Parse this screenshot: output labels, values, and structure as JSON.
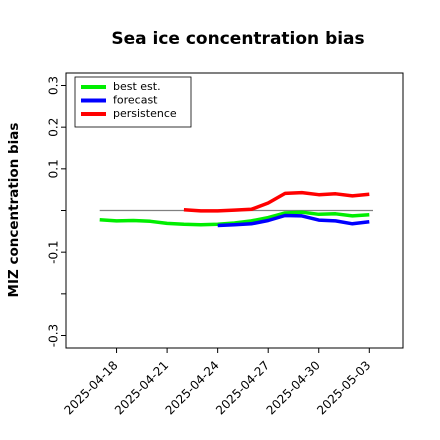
{
  "chart_data": {
    "type": "line",
    "title": "Sea ice concentration bias",
    "ylabel": "MIZ concentration bias",
    "xlabel": "",
    "ylim": [
      -0.33,
      0.33
    ],
    "yticks": [
      -0.3,
      -0.2,
      -0.1,
      0.0,
      0.1,
      0.2,
      0.3
    ],
    "ytick_labels": [
      "-0.3",
      "",
      "-0.1",
      "",
      "0.1",
      "0.2",
      "0.3"
    ],
    "xlim": [
      "2025-04-15",
      "2025-05-05"
    ],
    "xticks": [
      "2025-04-18",
      "2025-04-21",
      "2025-04-24",
      "2025-04-27",
      "2025-04-30",
      "2025-05-03"
    ],
    "xtick_labels": [
      "2025-04-18",
      "2025-04-21",
      "2025-04-24",
      "2025-04-27",
      "2025-04-30",
      "2025-05-03"
    ],
    "highlight_tick": "2025-04-24",
    "highlight_color": "#228b22",
    "zero_line": {
      "y": 0.0,
      "color": "#808080"
    },
    "grid": false,
    "legend_position": "top-left",
    "series": [
      {
        "name": "best est.",
        "color": "#00ee00",
        "x": [
          "2025-04-17",
          "2025-04-18",
          "2025-04-19",
          "2025-04-20",
          "2025-04-21",
          "2025-04-22",
          "2025-04-23",
          "2025-04-24",
          "2025-04-25",
          "2025-04-26",
          "2025-04-27",
          "2025-04-28",
          "2025-04-29",
          "2025-04-30",
          "2025-05-01",
          "2025-05-02",
          "2025-05-03"
        ],
        "y": [
          -0.022,
          -0.025,
          -0.024,
          -0.026,
          -0.031,
          -0.033,
          -0.034,
          -0.033,
          -0.03,
          -0.025,
          -0.017,
          -0.006,
          -0.004,
          -0.009,
          -0.008,
          -0.013,
          -0.01
        ]
      },
      {
        "name": "forecast",
        "color": "#0000ff",
        "x": [
          "2025-04-24",
          "2025-04-25",
          "2025-04-26",
          "2025-04-27",
          "2025-04-28",
          "2025-04-29",
          "2025-04-30",
          "2025-05-01",
          "2025-05-02",
          "2025-05-03"
        ],
        "y": [
          -0.036,
          -0.034,
          -0.032,
          -0.024,
          -0.012,
          -0.013,
          -0.023,
          -0.025,
          -0.032,
          -0.027
        ]
      },
      {
        "name": "persistence",
        "color": "#ff0000",
        "x": [
          "2025-04-22",
          "2025-04-23",
          "2025-04-24",
          "2025-04-25",
          "2025-04-26",
          "2025-04-27",
          "2025-04-28",
          "2025-04-29",
          "2025-04-30",
          "2025-05-01",
          "2025-05-02",
          "2025-05-03"
        ],
        "y": [
          0.002,
          -0.001,
          -0.001,
          0.001,
          0.003,
          0.018,
          0.041,
          0.043,
          0.038,
          0.04,
          0.035,
          0.039
        ]
      }
    ]
  }
}
